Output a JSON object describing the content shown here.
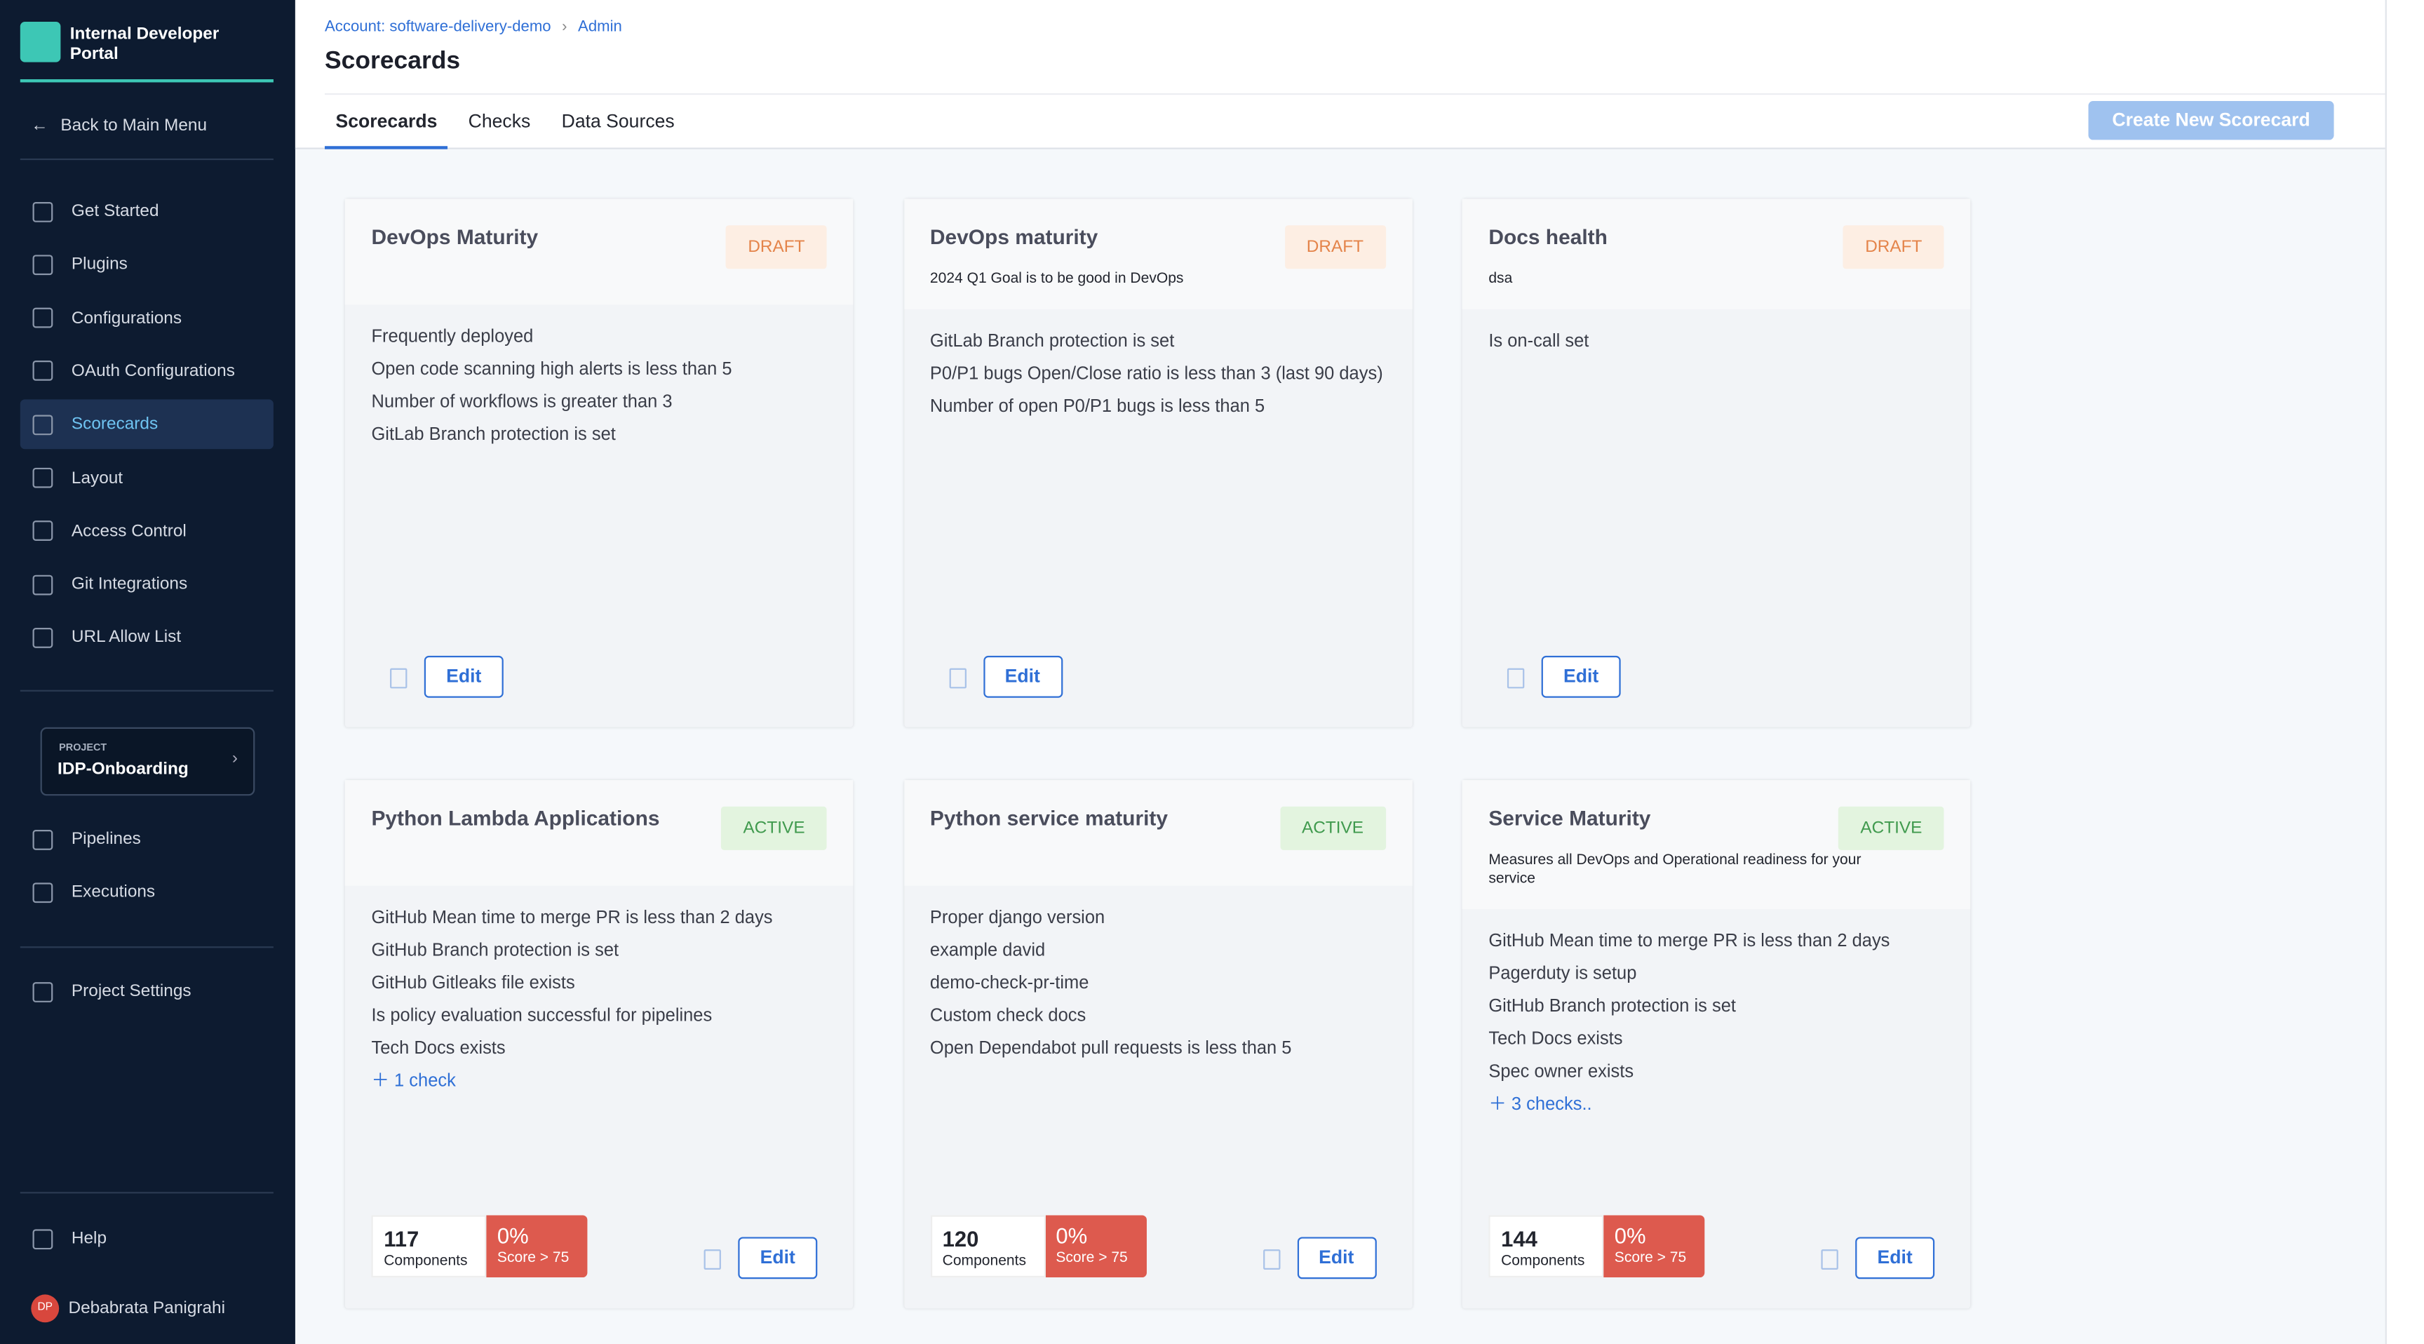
{
  "sidebar": {
    "brand": "Internal Developer Portal",
    "back": "Back to Main Menu",
    "nav": [
      "Get Started",
      "Plugins",
      "Configurations",
      "OAuth Configurations",
      "Scorecards",
      "Layout",
      "Access Control",
      "Git Integrations",
      "URL Allow List"
    ],
    "active_nav": 4,
    "project": {
      "label": "PROJECT",
      "name": "IDP-Onboarding"
    },
    "project_nav": [
      "Pipelines",
      "Executions"
    ],
    "settings": "Project Settings",
    "help": "Help",
    "user": {
      "initials": "DP",
      "name": "Debabrata Panigrahi"
    }
  },
  "header": {
    "breadcrumbs": [
      "Account: software-delivery-demo",
      "Admin"
    ],
    "title": "Scorecards",
    "tabs": [
      "Scorecards",
      "Checks",
      "Data Sources"
    ],
    "active_tab": 0,
    "action": "Create New Scorecard"
  },
  "cards": [
    {
      "name": "DevOps Maturity",
      "status": "DRAFT",
      "checks": [
        "Frequently deployed",
        "Open code scanning high alerts is less than 5",
        "Number of workflows is greater than 3",
        "GitLab Branch protection is set"
      ],
      "edit": "Edit"
    },
    {
      "name": "DevOps maturity",
      "status": "DRAFT",
      "description": "2024 Q1 Goal is to be good in DevOps",
      "checks": [
        "GitLab Branch protection is set",
        "P0/P1 bugs Open/Close ratio is less than 3 (last 90 days)",
        "Number of open P0/P1 bugs is less than 5"
      ],
      "edit": "Edit"
    },
    {
      "name": "Docs health",
      "status": "DRAFT",
      "description": "dsa",
      "checks": [
        "Is on-call set"
      ],
      "edit": "Edit"
    },
    {
      "name": "Python Lambda Applications",
      "status": "ACTIVE",
      "checks": [
        "GitHub Mean time to merge PR is less than 2 days",
        "GitHub Branch protection is set",
        "GitHub Gitleaks file exists",
        "Is policy evaluation successful for pipelines",
        "Tech Docs exists"
      ],
      "more": "1 check",
      "components": 117,
      "components_label": "Components",
      "score": "0%",
      "score_label": "Score > 75",
      "edit": "Edit"
    },
    {
      "name": "Python service maturity",
      "status": "ACTIVE",
      "checks": [
        "Proper django version",
        "example david",
        "demo-check-pr-time",
        "Custom check docs",
        "Open Dependabot pull requests is less than 5"
      ],
      "components": 120,
      "components_label": "Components",
      "score": "0%",
      "score_label": "Score > 75",
      "edit": "Edit"
    },
    {
      "name": "Service Maturity",
      "status": "ACTIVE",
      "description": "Measures all DevOps and Operational readiness for your service",
      "checks": [
        "GitHub Mean time to merge PR is less than 2 days",
        "Pagerduty is setup",
        "GitHub Branch protection is set",
        "Tech Docs exists",
        "Spec owner exists"
      ],
      "more": "3 checks..",
      "components": 144,
      "components_label": "Components",
      "score": "0%",
      "score_label": "Score > 75",
      "edit": "Edit"
    }
  ]
}
